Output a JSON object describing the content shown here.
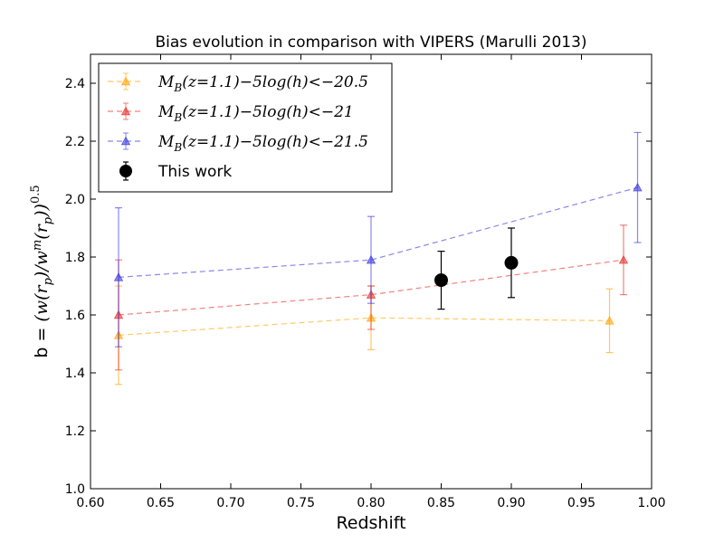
{
  "chart_data": {
    "type": "scatter",
    "title": "Bias evolution in comparison with VIPERS (Marulli 2013)",
    "xlabel": "Redshift",
    "ylabel": "b = (w(r_p)/w^m(r_p))^0.5",
    "ylabel_parts": {
      "prefix": "b = ",
      "body": "(w(r",
      "sub": "p",
      "mid": ")/w",
      "sup_m": "m",
      "mid2": "(r",
      "sub2": "p",
      "close": "))",
      "exp": "0.5"
    },
    "xlim": [
      0.6,
      1.0
    ],
    "ylim": [
      1.0,
      2.5
    ],
    "x_ticks": [
      "0.60",
      "0.65",
      "0.70",
      "0.75",
      "0.80",
      "0.85",
      "0.90",
      "0.95",
      "1.00"
    ],
    "y_ticks": [
      "1.0",
      "1.2",
      "1.4",
      "1.6",
      "1.8",
      "2.0",
      "2.2",
      "2.4"
    ],
    "legend_position": "upper-left",
    "series": [
      {
        "name": "M_B(z=1.1)−5log(h) < −20.5",
        "label_parts": {
          "M": "M",
          "sub": "B",
          "rest": "(z=1.1)−5log(h)<−20.5"
        },
        "color": "#FFA500",
        "marker": "triangle",
        "line": "dashed",
        "x": [
          0.62,
          0.8,
          0.97
        ],
        "y": [
          1.53,
          1.59,
          1.58
        ],
        "yerr_low": [
          0.17,
          0.11,
          0.11
        ],
        "yerr_high": [
          0.17,
          0.11,
          0.11
        ]
      },
      {
        "name": "M_B(z=1.1)−5log(h) < −21",
        "label_parts": {
          "M": "M",
          "sub": "B",
          "rest": "(z=1.1)−5log(h)<−21"
        },
        "color": "#E8302A",
        "marker": "triangle",
        "line": "dashed",
        "x": [
          0.62,
          0.8,
          0.98
        ],
        "y": [
          1.6,
          1.67,
          1.79
        ],
        "yerr_low": [
          0.19,
          0.12,
          0.12
        ],
        "yerr_high": [
          0.19,
          0.03,
          0.12
        ]
      },
      {
        "name": "M_B(z=1.1)−5log(h) < −21.5",
        "label_parts": {
          "M": "M",
          "sub": "B",
          "rest": "(z=1.1)−5log(h)<−21.5"
        },
        "color": "#3A3ADF",
        "marker": "triangle",
        "line": "dashed",
        "x": [
          0.62,
          0.8,
          0.99
        ],
        "y": [
          1.73,
          1.79,
          2.04
        ],
        "yerr_low": [
          0.24,
          0.15,
          0.19
        ],
        "yerr_high": [
          0.24,
          0.15,
          0.19
        ]
      },
      {
        "name": "This work",
        "color": "#000000",
        "marker": "circle",
        "line": "none",
        "x": [
          0.85,
          0.9
        ],
        "y": [
          1.72,
          1.78
        ],
        "yerr_low": [
          0.1,
          0.12
        ],
        "yerr_high": [
          0.1,
          0.12
        ]
      }
    ]
  }
}
